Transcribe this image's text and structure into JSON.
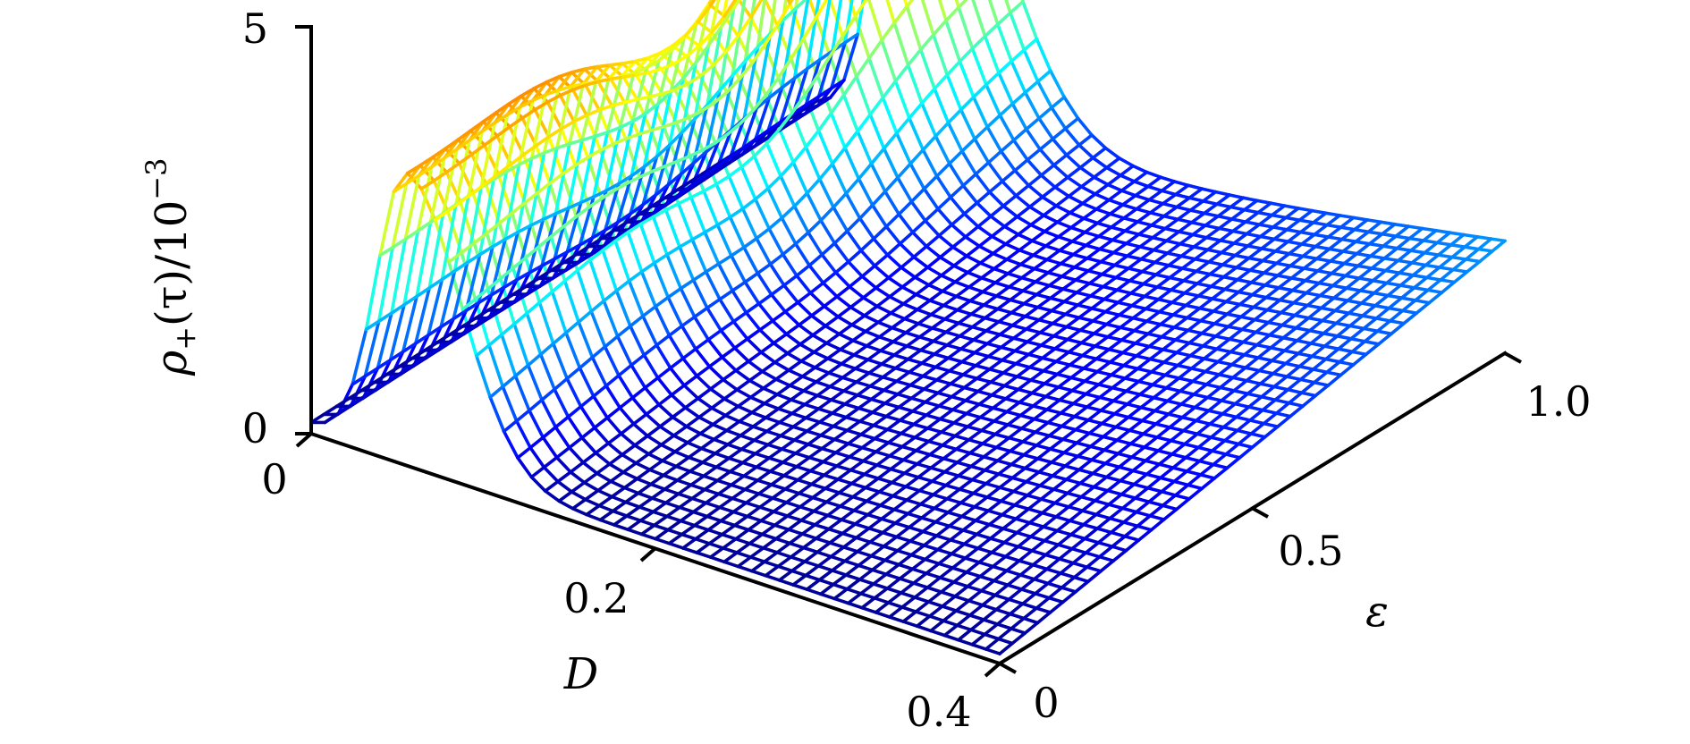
{
  "chart_data": {
    "type": "surface-3d-mesh",
    "title": "",
    "x_axis": {
      "label": "D",
      "range": [
        0,
        0.4
      ],
      "ticks": [
        0,
        0.2,
        0.4
      ],
      "tick_labels": [
        "0",
        "0.2",
        "0.4"
      ]
    },
    "y_axis": {
      "label": "ε",
      "range": [
        0,
        1.0
      ],
      "ticks": [
        0,
        0.5,
        1.0
      ],
      "tick_labels": [
        "0",
        "0.5",
        "1.0"
      ]
    },
    "z_axis": {
      "label_main": "ρ",
      "label_sub": "+",
      "label_tail": "(τ)/10",
      "label_sup": "−3",
      "range": [
        0,
        5
      ],
      "ticks": [
        0,
        5
      ],
      "tick_labels": [
        "0",
        "5"
      ]
    },
    "colormap": "jet",
    "grid": false,
    "surface_samples": {
      "description_points": [
        {
          "D": 0.0,
          "eps": 0.0,
          "z": 0.3
        },
        {
          "D": 0.06,
          "eps": 0.0,
          "z": 4.6
        },
        {
          "D": 0.1,
          "eps": 0.0,
          "z": 2.5
        },
        {
          "D": 0.2,
          "eps": 0.0,
          "z": 0.2
        },
        {
          "D": 0.06,
          "eps": 0.5,
          "z": 3.4
        },
        {
          "D": 0.06,
          "eps": 1.0,
          "z": 3.9
        },
        {
          "D": 0.4,
          "eps": 1.0,
          "z": 1.5
        },
        {
          "D": 0.4,
          "eps": 0.0,
          "z": 0.0
        }
      ]
    }
  }
}
